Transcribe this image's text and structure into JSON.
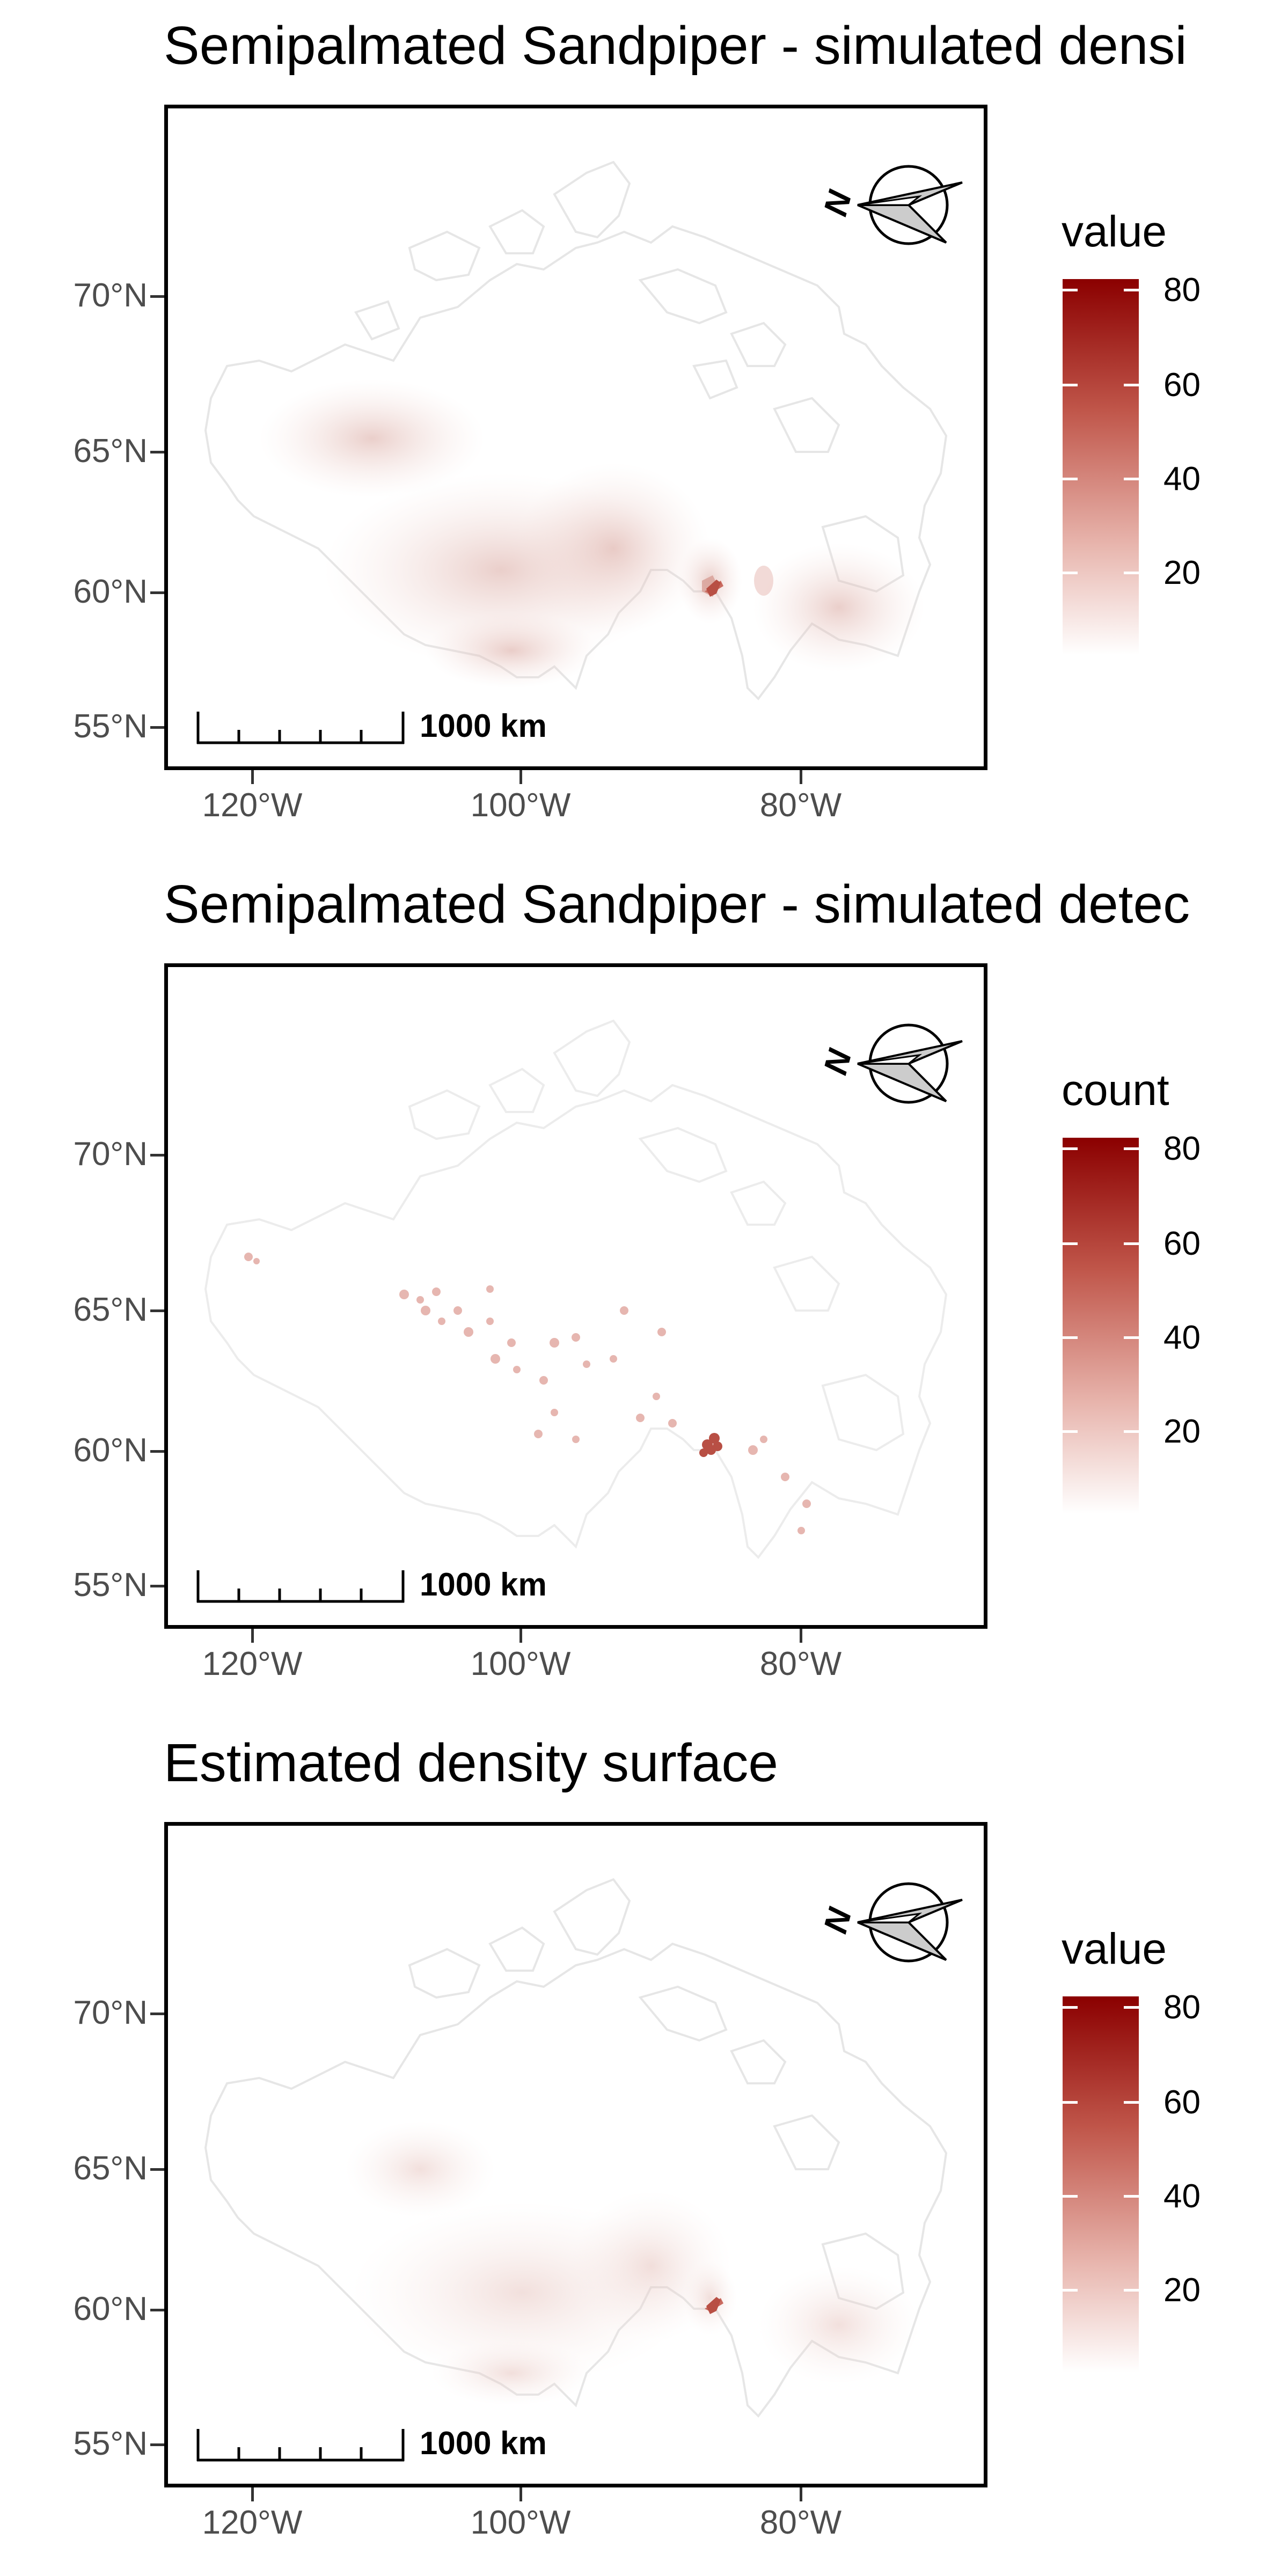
{
  "colors": {
    "low": "#ffffff",
    "high": "#8b0000",
    "land_outline": "#e6e6e6",
    "axis_text": "#4d4d4d"
  },
  "axes": {
    "y_ticks": [
      "70°N",
      "65°N",
      "60°N",
      "55°N"
    ],
    "x_ticks": [
      "120°W",
      "100°W",
      "80°W"
    ]
  },
  "scalebar": {
    "label": "1000 km"
  },
  "north_arrow": {
    "label": "N"
  },
  "panels": [
    {
      "title": "Semipalmated Sandpiper - simulated densi",
      "legend_title": "value",
      "legend_ticks": [
        "80",
        "60",
        "40",
        "20"
      ],
      "style": "surface"
    },
    {
      "title": "Semipalmated Sandpiper - simulated detec",
      "legend_title": "count",
      "legend_ticks": [
        "80",
        "60",
        "40",
        "20"
      ],
      "style": "points"
    },
    {
      "title": "Estimated density surface",
      "legend_title": "value",
      "legend_ticks": [
        "80",
        "60",
        "40",
        "20"
      ],
      "style": "surface-faint"
    }
  ]
}
